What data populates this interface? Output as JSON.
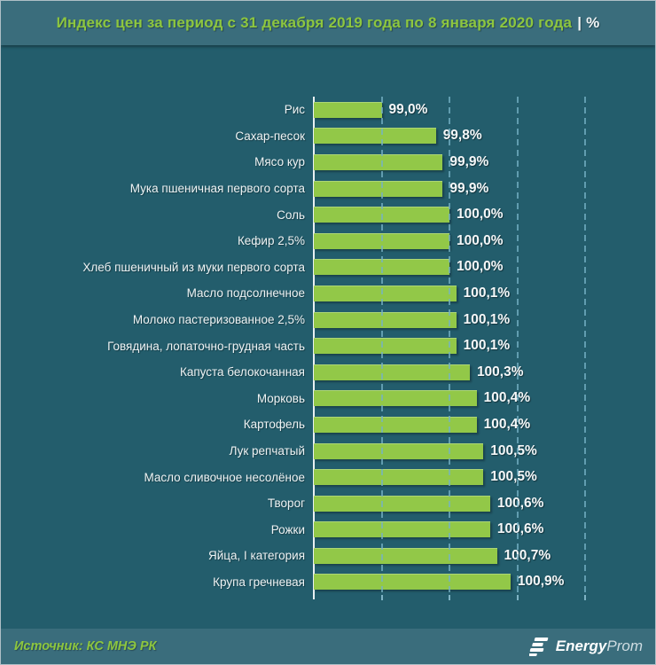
{
  "header": {
    "title": "Индекс цен за период с 31 декабря 2019 года по 8 января 2020 года",
    "title_suffix": "| %"
  },
  "chart_data": {
    "type": "bar",
    "orientation": "horizontal",
    "title": "Индекс цен за период с 31 декабря 2019 года по 8 января 2020 года | %",
    "categories": [
      "Рис",
      "Сахар-песок",
      "Мясо кур",
      "Мука пшеничная первого сорта",
      "Соль",
      "Кефир 2,5%",
      "Хлеб пшеничный из муки первого сорта",
      "Масло подсолнечное",
      "Молоко пастеризованное 2,5%",
      "Говядина, лопаточно-грудная часть",
      "Капуста белокочанная",
      "Морковь",
      "Картофель",
      "Лук репчатый",
      "Масло сливочное несолёное",
      "Творог",
      "Рожки",
      "Яйца, I категория",
      "Крупа гречневая"
    ],
    "values": [
      99.0,
      99.8,
      99.9,
      99.9,
      100.0,
      100.0,
      100.0,
      100.1,
      100.1,
      100.1,
      100.3,
      100.4,
      100.4,
      100.5,
      100.5,
      100.6,
      100.6,
      100.7,
      100.9
    ],
    "value_labels": [
      "99,0%",
      "99,8%",
      "99,9%",
      "99,9%",
      "100,0%",
      "100,0%",
      "100,0%",
      "100,1%",
      "100,1%",
      "100,1%",
      "100,3%",
      "100,4%",
      "100,4%",
      "100,5%",
      "100,5%",
      "100,6%",
      "100,6%",
      "100,7%",
      "100,9%"
    ],
    "xlim": [
      98,
      102
    ],
    "gridlines": [
      99,
      100,
      101,
      102
    ],
    "grid_style": "dashed-vertical",
    "legend": "none",
    "bar_color": "#92c848",
    "unit": "%"
  },
  "footer": {
    "source": "Источник: КС МНЭ РК",
    "logo_bold": "Energy",
    "logo_light": "Prom"
  },
  "colors": {
    "band_background": "#3a6d7c",
    "body_background": "#235d6c",
    "accent_green": "#8dc63f",
    "bar_green": "#92c848",
    "gridline_blue": "#76b2c6",
    "axis_white": "#e9f0f2",
    "text_white": "#eef3f4"
  }
}
